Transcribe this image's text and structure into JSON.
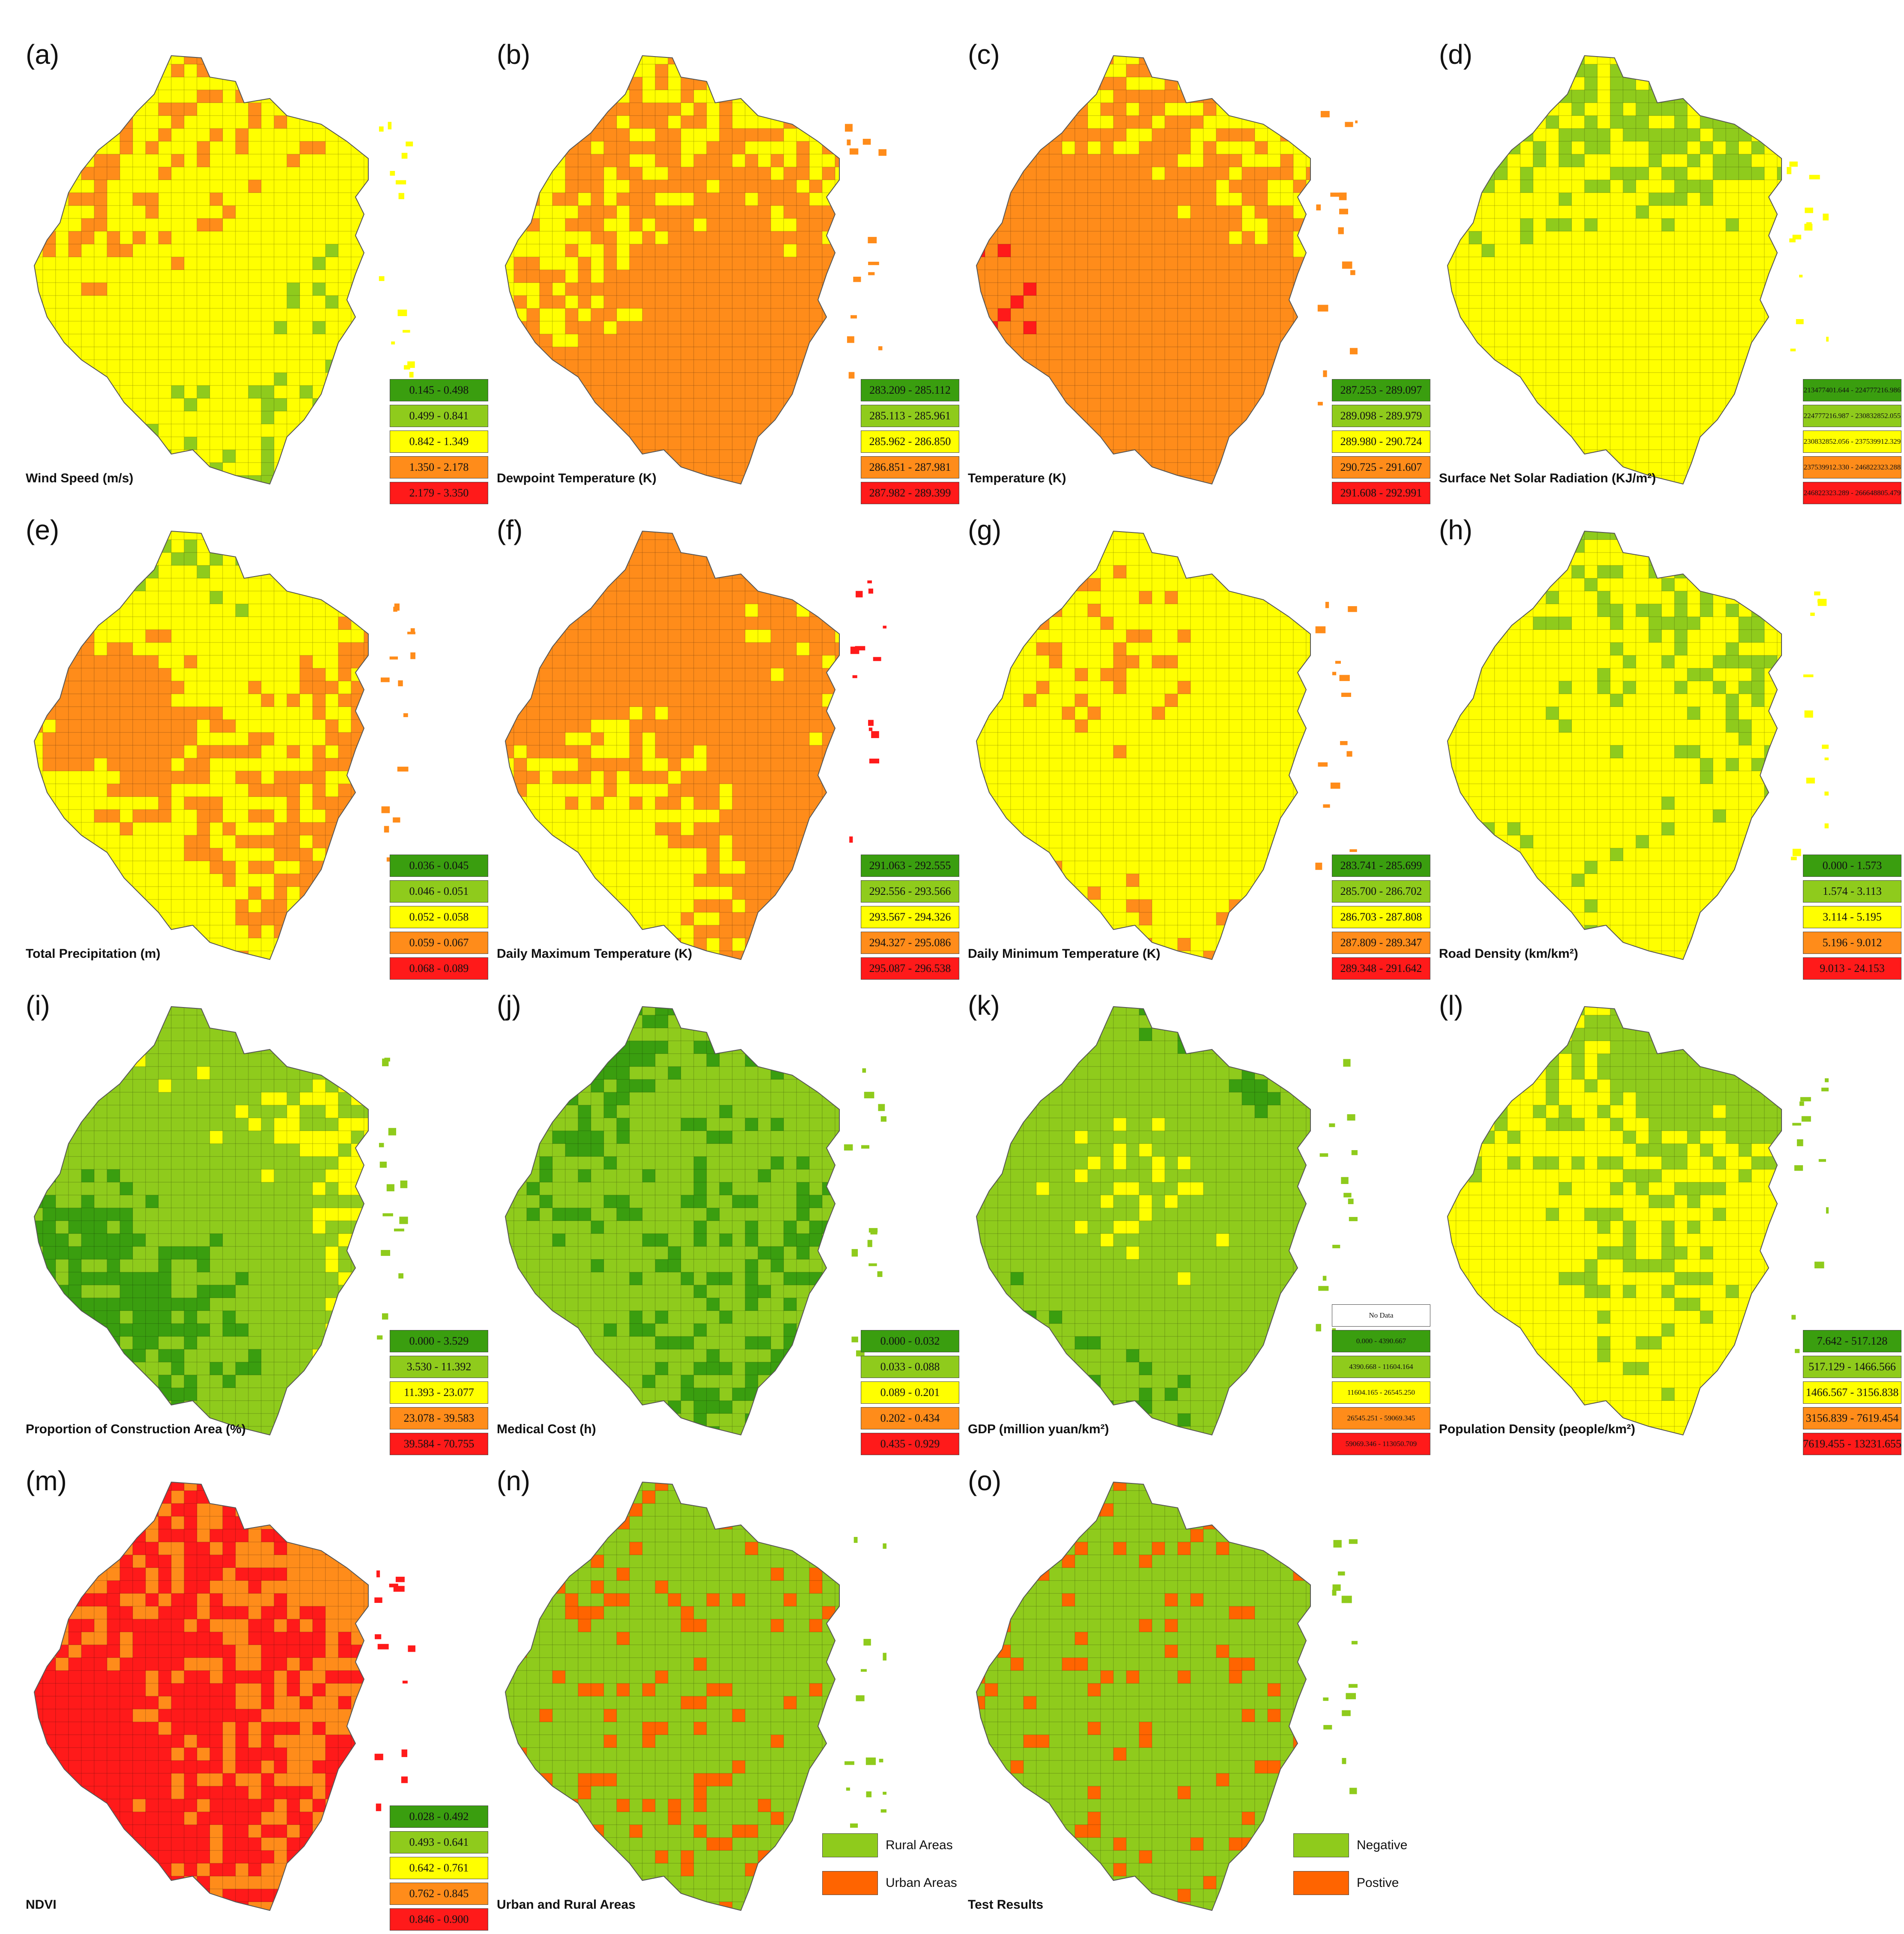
{
  "colors": {
    "c1": "#3a9e0f",
    "c2": "#8fcb1c",
    "c3": "#ffff00",
    "c4": "#ff8c1a",
    "c5": "#ff1a1a",
    "rural": "#8fcb1c",
    "urban": "#ff6400",
    "nodata": "#ffffff"
  },
  "panels": [
    {
      "letter": "(a)",
      "title": "Wind Speed (m/s)",
      "legend": [
        "0.145 - 0.498",
        "0.499 - 0.841",
        "0.842 - 1.349",
        "1.350 - 2.178",
        "2.179 - 3.350"
      ]
    },
    {
      "letter": "(b)",
      "title": "Dewpoint Temperature (K)",
      "legend": [
        "283.209 - 285.112",
        "285.113 - 285.961",
        "285.962 - 286.850",
        "286.851 - 287.981",
        "287.982 - 289.399"
      ]
    },
    {
      "letter": "(c)",
      "title": "Temperature (K)",
      "legend": [
        "287.253 - 289.097",
        "289.098 - 289.979",
        "289.980 - 290.724",
        "290.725 - 291.607",
        "291.608 - 292.991"
      ]
    },
    {
      "letter": "(d)",
      "title": "Surface Net Solar Radiation (KJ/m²)",
      "legend": [
        "213477401.644 - 224777216.986",
        "224777216.987 - 230832852.055",
        "230832852.056 - 237539912.329",
        "237539912.330 - 246822323.288",
        "246822323.289 - 266648805.479"
      ],
      "small": true
    },
    {
      "letter": "(e)",
      "title": "Total Precipitation (m)",
      "legend": [
        "0.036 - 0.045",
        "0.046 - 0.051",
        "0.052 - 0.058",
        "0.059 - 0.067",
        "0.068 - 0.089"
      ]
    },
    {
      "letter": "(f)",
      "title": "Daily Maximum Temperature (K)",
      "legend": [
        "291.063 - 292.555",
        "292.556 - 293.566",
        "293.567 - 294.326",
        "294.327 - 295.086",
        "295.087 - 296.538"
      ]
    },
    {
      "letter": "(g)",
      "title": "Daily Minimum Temperature (K)",
      "legend": [
        "283.741 - 285.699",
        "285.700 - 286.702",
        "286.703 - 287.808",
        "287.809 - 289.347",
        "289.348 - 291.642"
      ]
    },
    {
      "letter": "(h)",
      "title": "Road Density (km/km²)",
      "legend": [
        "0.000 - 1.573",
        "1.574 - 3.113",
        "3.114 - 5.195",
        "5.196 - 9.012",
        "9.013 - 24.153"
      ]
    },
    {
      "letter": "(i)",
      "title": "Proportion of Construction Area (%)",
      "legend": [
        "0.000 - 3.529",
        "3.530 - 11.392",
        "11.393 - 23.077",
        "23.078 - 39.583",
        "39.584 - 70.755"
      ]
    },
    {
      "letter": "(j)",
      "title": "Medical Cost (h)",
      "legend": [
        "0.000 - 0.032",
        "0.033 - 0.088",
        "0.089 - 0.201",
        "0.202 - 0.434",
        "0.435 - 0.929"
      ]
    },
    {
      "letter": "(k)",
      "title": "GDP (million yuan/km²)",
      "legend": [
        "0.000 - 4390.667",
        "4390.668 - 11604.164",
        "11604.165 - 26545.250",
        "26545.251 - 59069.345",
        "59069.346 - 113050.709"
      ],
      "small": true,
      "nodata": "No Data"
    },
    {
      "letter": "(l)",
      "title": "Population Density (people/km²)",
      "legend": [
        "7.642 - 517.128",
        "517.129 - 1466.566",
        "1466.567 - 3156.838",
        "3156.839 - 7619.454",
        "7619.455 - 13231.655"
      ]
    },
    {
      "letter": "(m)",
      "title": "NDVI",
      "legend": [
        "0.028 - 0.492",
        "0.493 - 0.641",
        "0.642 - 0.761",
        "0.762 - 0.845",
        "0.846 - 0.900"
      ]
    },
    {
      "letter": "(n)",
      "title": "Urban and Rural Areas",
      "binary": [
        "Rural Areas",
        "Urban Areas"
      ]
    },
    {
      "letter": "(o)",
      "title": "Test Results",
      "binary": [
        "Negative",
        "Postive"
      ]
    }
  ]
}
